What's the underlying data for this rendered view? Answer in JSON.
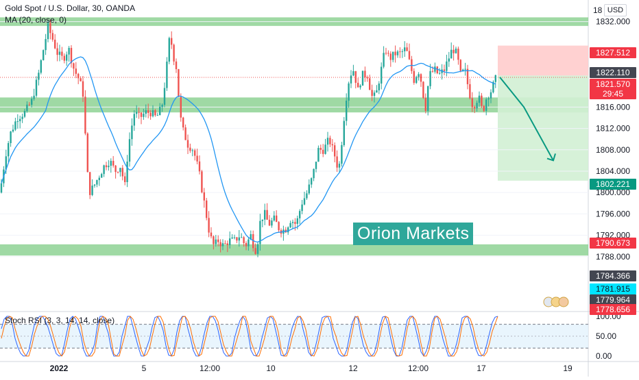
{
  "header": {
    "symbol_line": "Gold Spot / U.S. Dollar, 30, OANDA",
    "indicator_line": "MA (20, close, 0)",
    "currency": "USD",
    "currency_prefix": "18"
  },
  "watermark": "Orion Markets",
  "oscillator": {
    "title": "Stoch RSI (3, 3, 14, 14, close)",
    "ticks": [
      "100.00",
      "50.00",
      "0.00"
    ]
  },
  "price_axis": {
    "ticks": [
      "1832.000",
      "1816.000",
      "1812.000",
      "1808.000",
      "1804.000",
      "1800.000",
      "1796.000",
      "1792.000",
      "1788.000"
    ],
    "range": [
      1784.0,
      1835.0
    ]
  },
  "time_axis": {
    "labels": [
      "2022",
      "5",
      "12:00",
      "10",
      "12",
      "12:00",
      "17",
      "19"
    ]
  },
  "price_labels": [
    {
      "text": "1827.512",
      "color": "#f23645"
    },
    {
      "text": "1822.110",
      "color": "#434651"
    },
    {
      "text": "1821.570",
      "color": "#f23645",
      "sub": "29:45"
    },
    {
      "text": "1802.221",
      "color": "#089981"
    },
    {
      "text": "1790.673",
      "color": "#f23645"
    },
    {
      "text": "1784.366",
      "color": "#434651"
    },
    {
      "text": "1781.915",
      "color": "#00e5ff"
    },
    {
      "text": "1779.964",
      "color": "#434651"
    },
    {
      "text": "1778.656",
      "color": "#f23645"
    }
  ],
  "colors": {
    "up": "#26a69a",
    "down": "#ef5350",
    "ma": "#2196f3",
    "zone": "#7fcc85",
    "arrow": "#089981",
    "stop_zone": "#ffcccc",
    "target_zone": "#d2f0d4",
    "stoch_k": "#2962ff",
    "stoch_d": "#ff6d00"
  },
  "chart_data": {
    "type": "candlestick",
    "title": "Gold Spot / U.S. Dollar, 30, OANDA",
    "ylim": [
      1784,
      1835
    ],
    "zones": [
      {
        "from": 1831.2,
        "to": 1832.8
      },
      {
        "from": 1815.0,
        "to": 1817.8
      },
      {
        "from": 1788.2,
        "to": 1790.3
      }
    ],
    "trade": {
      "entry": 1821.9,
      "stop": 1827.512,
      "target": 1802.221
    },
    "arrow_path": [
      [
        1821.6,
        0
      ],
      [
        1816,
        0.45
      ],
      [
        1806,
        1
      ]
    ],
    "anchors": [
      [
        0,
        1800
      ],
      [
        8,
        1807
      ],
      [
        15,
        1811
      ],
      [
        25,
        1814
      ],
      [
        36,
        1815
      ],
      [
        46,
        1817
      ],
      [
        56,
        1822
      ],
      [
        62,
        1826
      ],
      [
        70,
        1831
      ],
      [
        76,
        1829
      ],
      [
        84,
        1826
      ],
      [
        92,
        1825
      ],
      [
        100,
        1827
      ],
      [
        108,
        1823
      ],
      [
        116,
        1821
      ],
      [
        122,
        1818
      ],
      [
        126,
        1806
      ],
      [
        130,
        1800
      ],
      [
        136,
        1801
      ],
      [
        144,
        1803
      ],
      [
        152,
        1805
      ],
      [
        160,
        1806
      ],
      [
        168,
        1804
      ],
      [
        176,
        1805
      ],
      [
        182,
        1801
      ],
      [
        186,
        1807
      ],
      [
        190,
        1811
      ],
      [
        196,
        1815
      ],
      [
        204,
        1814
      ],
      [
        212,
        1815
      ],
      [
        220,
        1815
      ],
      [
        228,
        1814
      ],
      [
        236,
        1816
      ],
      [
        242,
        1822
      ],
      [
        248,
        1830
      ],
      [
        252,
        1826
      ],
      [
        258,
        1823
      ],
      [
        262,
        1815
      ],
      [
        266,
        1812
      ],
      [
        274,
        1809
      ],
      [
        282,
        1808
      ],
      [
        290,
        1804
      ],
      [
        298,
        1798
      ],
      [
        306,
        1792
      ],
      [
        312,
        1790
      ],
      [
        318,
        1791
      ],
      [
        326,
        1790
      ],
      [
        334,
        1791
      ],
      [
        342,
        1791
      ],
      [
        350,
        1792
      ],
      [
        358,
        1790
      ],
      [
        366,
        1792
      ],
      [
        372,
        1789
      ],
      [
        376,
        1791
      ],
      [
        380,
        1795
      ],
      [
        386,
        1796
      ],
      [
        392,
        1794
      ],
      [
        400,
        1795
      ],
      [
        408,
        1793
      ],
      [
        416,
        1793
      ],
      [
        424,
        1795
      ],
      [
        432,
        1794
      ],
      [
        440,
        1798
      ],
      [
        448,
        1800
      ],
      [
        456,
        1803
      ],
      [
        464,
        1808
      ],
      [
        472,
        1808
      ],
      [
        480,
        1810
      ],
      [
        488,
        1807
      ],
      [
        494,
        1804
      ],
      [
        498,
        1809
      ],
      [
        504,
        1817
      ],
      [
        510,
        1822
      ],
      [
        516,
        1823
      ],
      [
        522,
        1819
      ],
      [
        528,
        1822
      ],
      [
        536,
        1822
      ],
      [
        542,
        1818
      ],
      [
        548,
        1818
      ],
      [
        556,
        1823
      ],
      [
        562,
        1827
      ],
      [
        568,
        1825
      ],
      [
        576,
        1826
      ],
      [
        584,
        1826
      ],
      [
        592,
        1827
      ],
      [
        598,
        1824
      ],
      [
        604,
        1821
      ],
      [
        610,
        1823
      ],
      [
        616,
        1820
      ],
      [
        620,
        1815
      ],
      [
        626,
        1822
      ],
      [
        634,
        1823
      ],
      [
        640,
        1822
      ],
      [
        648,
        1823
      ],
      [
        654,
        1825
      ],
      [
        660,
        1827
      ],
      [
        666,
        1826
      ],
      [
        672,
        1822
      ],
      [
        678,
        1823
      ],
      [
        684,
        1819
      ],
      [
        690,
        1816
      ],
      [
        698,
        1818
      ],
      [
        704,
        1815
      ],
      [
        710,
        1818
      ],
      [
        716,
        1819
      ],
      [
        724,
        1821.6
      ]
    ],
    "ma_period": 20,
    "stoch": {
      "upper": 80,
      "mid": 50,
      "lower": 20
    }
  }
}
